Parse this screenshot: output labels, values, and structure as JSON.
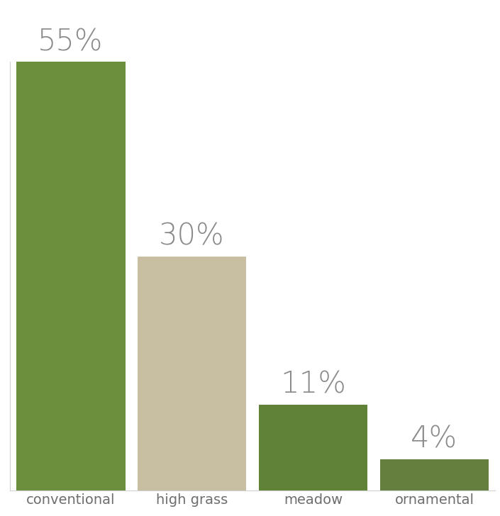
{
  "chart_data": {
    "type": "bar",
    "categories": [
      "conventional",
      "high grass",
      "meadow",
      "ornamental"
    ],
    "values": [
      55,
      30,
      11,
      4
    ],
    "value_labels": [
      "55%",
      "30%",
      "11%",
      "4%"
    ],
    "colors": [
      "#6b8f3c",
      "#c8bfa2",
      "#5f8237",
      "#647f3e"
    ],
    "ylim": [
      0,
      55
    ],
    "yticks": [],
    "data_labels": true,
    "tick_labels": "x",
    "grid": false
  }
}
